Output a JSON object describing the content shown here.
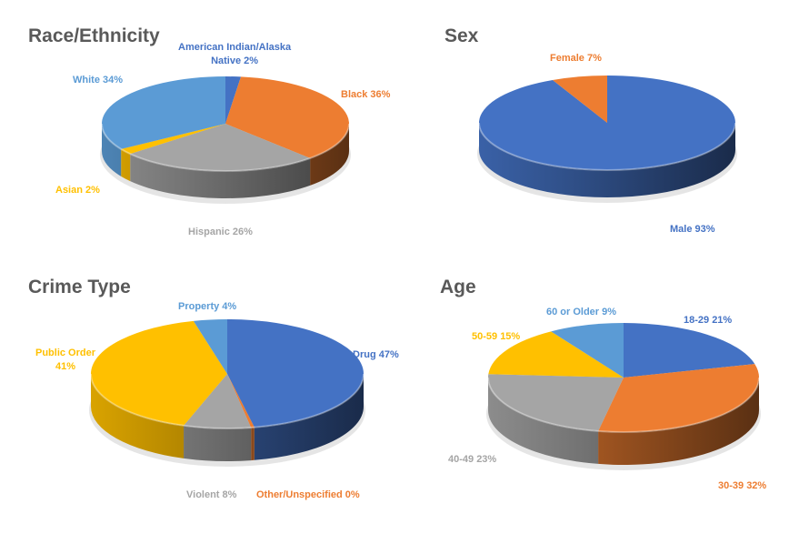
{
  "chart_data": [
    {
      "type": "pie",
      "title": "Race/Ethnicity",
      "categories": [
        "American Indian/Alaska Native",
        "Black",
        "Hispanic",
        "Asian",
        "White"
      ],
      "values": [
        2,
        36,
        26,
        2,
        34
      ],
      "labels": [
        "American Indian/Alaska Native 2%",
        "Black 36%",
        "Hispanic 26%",
        "Asian 2%",
        "White 34%"
      ],
      "colors": [
        "#4472C4",
        "#ED7D31",
        "#A5A5A5",
        "#FFC000",
        "#5B9BD5"
      ]
    },
    {
      "type": "pie",
      "title": "Sex",
      "categories": [
        "Male",
        "Female"
      ],
      "values": [
        93,
        7
      ],
      "labels": [
        "Male 93%",
        "Female 7%"
      ],
      "colors": [
        "#4472C4",
        "#ED7D31"
      ]
    },
    {
      "type": "pie",
      "title": "Crime Type",
      "categories": [
        "Drug",
        "Other/Unspecified",
        "Violent",
        "Public Order",
        "Property"
      ],
      "values": [
        47,
        0.4,
        8,
        41,
        4
      ],
      "labels": [
        "Drug 47%",
        "Other/Unspecified 0%",
        "Violent 8%",
        "Public Order 41%",
        "Property 4%"
      ],
      "colors": [
        "#4472C4",
        "#ED7D31",
        "#A5A5A5",
        "#FFC000",
        "#5B9BD5"
      ]
    },
    {
      "type": "pie",
      "title": "Age",
      "categories": [
        "18-29",
        "30-39",
        "40-49",
        "50-59",
        "60 or Older"
      ],
      "values": [
        21,
        32,
        23,
        15,
        9
      ],
      "labels": [
        "18-29 21%",
        "30-39 32%",
        "40-49 23%",
        "50-59 15%",
        "60 or Older 9%"
      ],
      "colors": [
        "#4472C4",
        "#ED7D31",
        "#A5A5A5",
        "#FFC000",
        "#5B9BD5"
      ]
    }
  ],
  "panels": {
    "race": {
      "title": "Race/Ethnicity",
      "labels": {
        "aian_line1": "American Indian/Alaska",
        "aian_line2": "Native 2%",
        "black": "Black 36%",
        "hispanic": "Hispanic 26%",
        "asian": "Asian 2%",
        "white": "White 34%"
      }
    },
    "sex": {
      "title": "Sex",
      "labels": {
        "female": "Female 7%",
        "male": "Male 93%"
      }
    },
    "crime": {
      "title": "Crime Type",
      "labels": {
        "property": "Property 4%",
        "public_line1": "Public Order",
        "public_line2": "41%",
        "drug": "Drug 47%",
        "violent": "Violent 8%",
        "other": "Other/Unspecified 0%"
      }
    },
    "age": {
      "title": "Age",
      "labels": {
        "sixty": "60 or Older 9%",
        "a18": "18-29 21%",
        "fifty": "50-59 15%",
        "forty": "40-49 23%",
        "thirty": "30-39 32%"
      }
    }
  },
  "colors": {
    "title": "#595959",
    "blue": "#4472C4",
    "orange": "#ED7D31",
    "gray": "#A5A5A5",
    "yellow": "#FFC000",
    "lightblue": "#5B9BD5"
  }
}
